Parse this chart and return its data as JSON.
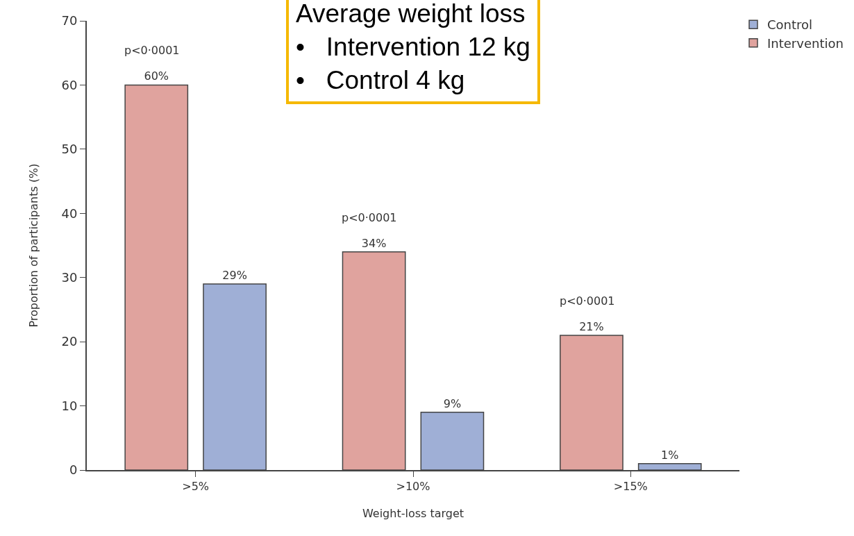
{
  "chart_data": {
    "type": "bar",
    "categories": [
      ">5%",
      ">10%",
      ">15%"
    ],
    "series": [
      {
        "name": "Intervention",
        "color": "#e0a39e",
        "values": [
          60,
          34,
          21
        ],
        "value_labels": [
          "60%",
          "34%",
          "21%"
        ]
      },
      {
        "name": "Control",
        "color": "#9fafd6",
        "values": [
          29,
          9,
          1
        ],
        "value_labels": [
          "29%",
          "9%",
          "1%"
        ]
      }
    ],
    "xlabel": "Weight-loss target",
    "ylabel": "Proportion of participants (%)",
    "ylim": [
      0,
      70
    ],
    "yticks": [
      0,
      10,
      20,
      30,
      40,
      50,
      60,
      70
    ],
    "grid": false,
    "legend": "top right",
    "annotations": [
      "p<0·0001",
      "p<0·0001",
      "p<0·0001",
      "Average weight loss\n•   Intervention 12 kg\n•   Control 4 kg"
    ]
  }
}
